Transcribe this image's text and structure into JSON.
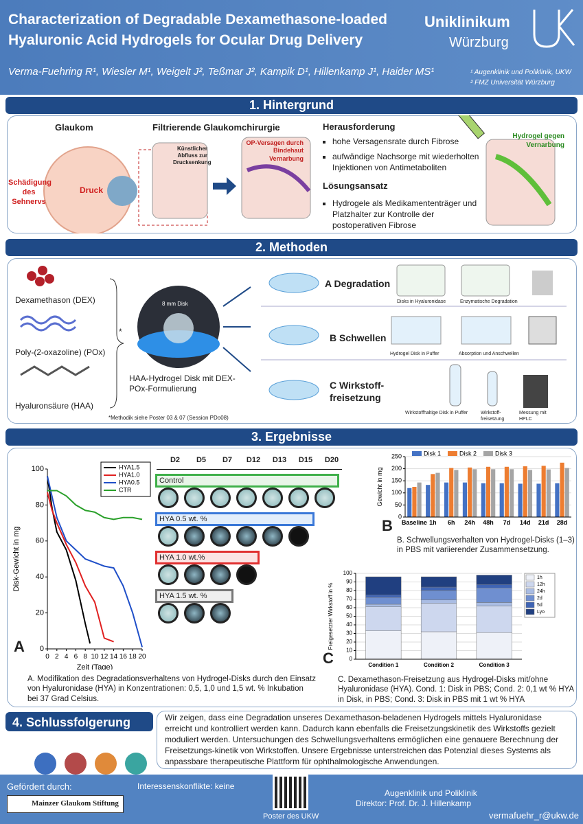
{
  "header": {
    "title_line1": "Characterization of Degradable Dexamethasone-loaded",
    "title_line2": "Hyaluronic Acid Hydrogels for Ocular Drug Delivery",
    "authors": "Verma-Fuehring R¹, Wiesler M¹, Weigelt J², Teßmar J², Kampik D¹, Hillenkamp J¹, Haider MS¹",
    "affiliation1": "¹ Augenklinik und Poliklinik, UKW",
    "affiliation2": "² FMZ Universität Würzburg",
    "logo_line1": "Uniklinikum",
    "logo_line2": "Würzburg"
  },
  "hintergrund": {
    "heading": "1. Hintergrund",
    "glaukom": "Glaukom",
    "schaedigung": "Schädigung des Sehnervs",
    "druck": "Druck",
    "filter_title": "Filtrierende Glaukomchirurgie",
    "kuenstlich": "Künstlicher Abfluss zur Drucksenkung",
    "op_versagen": "OP-Versagen durch Bindehaut Vernarbung",
    "herausforderung": "Herausforderung",
    "bullets": [
      "hohe Versagensrate durch Fibrose",
      "aufwändige Nachsorge mit wiederholten Injektionen von Antimetaboliten"
    ],
    "loesung": "Lösungsansatz",
    "loesung_bullets": [
      "Hydrogele als Medikamententräger und Platzhalter zur Kontrolle der postoperativen Fibrose"
    ],
    "hydrogel": "Hydrogel gegen Vernarbung"
  },
  "methoden": {
    "heading": "2. Methoden",
    "dex": "Dexamethason (DEX)",
    "pox": "Poly-(2-oxazoline) (POx)",
    "haa": "Hyaluronsäure (HAA)",
    "asterisk": "*",
    "disk_label": "8 mm Disk",
    "disk_caption": "HAA-Hydrogel Disk mit DEX-POx-Formulierung",
    "footnote": "*Methodik siehe Poster 03 & 07 (Session PDo08)",
    "a": "A Degradation",
    "a_sub1": "Disks in Hyaluronidase",
    "a_sub2": "Enzymatische Degradation",
    "b": "B Schwellen",
    "b_sub1": "Hydrogel Disk in Puffer",
    "b_sub2": "Absorption und Anschwellen",
    "c": "C Wirkstoff-freisetzung",
    "c_sub1": "Wirkstoffhaltige Disk in Puffer",
    "c_sub2": "Wirkstoff-freisetzung",
    "c_sub3": "Messung mit HPLC"
  },
  "ergebnisse": {
    "heading": "3. Ergebnisse",
    "panel_a": "A",
    "panel_b": "B",
    "panel_c": "C",
    "days": [
      "D2",
      "D5",
      "D7",
      "D12",
      "D13",
      "D15",
      "D20"
    ],
    "groups": [
      "Control",
      "HYA 0.5 wt. %",
      "HYA 1.0 wt.%",
      "HYA 1.5 wt. %"
    ],
    "caption_a": "A. Modifikation des Degradationsverhaltens von Hydrogel-Disks durch den Einsatz von Hyaluronidase (HYA) in Konzentrationen: 0,5, 1,0 und 1,5 wt. % Inkubation bei 37 Grad Celsius.",
    "caption_b": "B. Schwellungsverhalten von Hydrogel-Disks (1–3) in PBS mit variierender Zusammensetzung.",
    "caption_c": "C. Dexamethason-Freisetzung aus Hydrogel-Disks mit/ohne Hyaluronidase (HYA). Cond. 1: Disk in PBS; Cond. 2: 0,1 wt % HYA in Disk, in PBS; Cond. 3: Disk in PBS mit 1 wt % HYA"
  },
  "chart_data": [
    {
      "type": "line",
      "xlabel": "Zeit (Tage)",
      "ylabel": "Disk-Gewicht in mg",
      "xlim": [
        0,
        20
      ],
      "xticks": [
        0,
        2,
        4,
        6,
        8,
        10,
        12,
        14,
        16,
        18,
        20
      ],
      "ylim": [
        0,
        100
      ],
      "yticks": [
        0,
        20,
        40,
        60,
        80,
        100
      ],
      "legend": "top-right",
      "series": [
        {
          "name": "HYA1.5",
          "color": "#000000",
          "x": [
            0,
            1,
            2,
            4,
            6,
            8,
            9
          ],
          "values": [
            96,
            78,
            65,
            55,
            38,
            14,
            3
          ]
        },
        {
          "name": "HYA1.0",
          "color": "#e02020",
          "x": [
            0,
            1,
            2,
            4,
            6,
            8,
            10,
            12,
            14
          ],
          "values": [
            87,
            77,
            70,
            58,
            48,
            35,
            26,
            6,
            4
          ]
        },
        {
          "name": "HYA0.5",
          "color": "#1f4fc8",
          "x": [
            0,
            2,
            4,
            6,
            8,
            10,
            12,
            14,
            16,
            18,
            20
          ],
          "values": [
            96,
            73,
            60,
            55,
            50,
            48,
            46,
            45,
            35,
            20,
            1
          ]
        },
        {
          "name": "CTR",
          "color": "#2aa02a",
          "x": [
            0,
            2,
            4,
            6,
            8,
            10,
            12,
            14,
            16,
            18,
            20
          ],
          "values": [
            88,
            88,
            85,
            80,
            77,
            76,
            73,
            72,
            73,
            73,
            72
          ]
        }
      ]
    },
    {
      "type": "bar",
      "ylabel": "Gewicht in mg",
      "grid": true,
      "legend": "top",
      "stacked": false,
      "categories": [
        "Baseline",
        "1h",
        "6h",
        "24h",
        "48h",
        "7d",
        "14d",
        "21d",
        "28d"
      ],
      "ylim": [
        0,
        250
      ],
      "yticks": [
        0,
        50,
        100,
        150,
        200,
        250
      ],
      "series": [
        {
          "name": "Disk 1",
          "color": "#4472c4",
          "values": [
            120,
            133,
            143,
            143,
            140,
            140,
            138,
            138,
            140
          ]
        },
        {
          "name": "Disk 2",
          "color": "#ed7d31",
          "values": [
            125,
            178,
            203,
            205,
            208,
            208,
            210,
            212,
            225
          ]
        },
        {
          "name": "Disk 3",
          "color": "#a5a5a5",
          "values": [
            143,
            183,
            195,
            198,
            198,
            198,
            195,
            197,
            203
          ]
        }
      ]
    },
    {
      "type": "bar",
      "ylabel": "Freigesetzter Wirkstoff in %",
      "grid": true,
      "legend": "right",
      "stacked": true,
      "categories": [
        "Condition 1",
        "Condition 2",
        "Condition 3"
      ],
      "ylim": [
        0,
        100
      ],
      "yticks": [
        0,
        10,
        20,
        30,
        40,
        50,
        60,
        70,
        80,
        90,
        100
      ],
      "series": [
        {
          "name": "1h",
          "color": "#eef1f8",
          "values": [
            33,
            32,
            31
          ]
        },
        {
          "name": "12h",
          "color": "#cdd7ee",
          "values": [
            28,
            33,
            31
          ]
        },
        {
          "name": "24h",
          "color": "#a9bce3",
          "values": [
            3,
            4,
            4
          ]
        },
        {
          "name": "2d",
          "color": "#6f8fd0",
          "values": [
            8,
            11,
            17
          ]
        },
        {
          "name": "5d",
          "color": "#3f64b4",
          "values": [
            3,
            4,
            4
          ]
        },
        {
          "name": "Lyo",
          "color": "#203f80",
          "values": [
            21,
            12,
            11
          ]
        }
      ]
    }
  ],
  "schluss": {
    "heading": "4. Schlussfolgerung",
    "text": "Wir zeigen, dass eine Degradation unseres Dexamethason-beladenen Hydrogels mittels Hyaluronidase erreicht und kontrolliert werden kann. Dadurch kann ebenfalls die Freisetzungskinetik des Wirkstoffs gezielt moduliert werden. Untersuchungen des Schwellungsverhaltens ermöglichen eine genauere Berechnung der Freisetzungs-kinetik von Wirkstoffen. Unsere Ergebnisse unterstreichen das Potenzial dieses Systems als anpassbare therapeutische Plattform für ophthalmologische Anwendungen."
  },
  "footer": {
    "gefoerdert": "Gefördert durch:",
    "sponsor": "Mainzer Glaukom Stiftung",
    "konflikte": "Interessenskonflikte: keine",
    "qr": "Poster des UKW",
    "klinik": "Augenklinik und Poliklinik",
    "direktor": "Direktor: Prof. Dr. J. Hillenkamp",
    "email": "vermafuehr_r@ukw.de"
  }
}
